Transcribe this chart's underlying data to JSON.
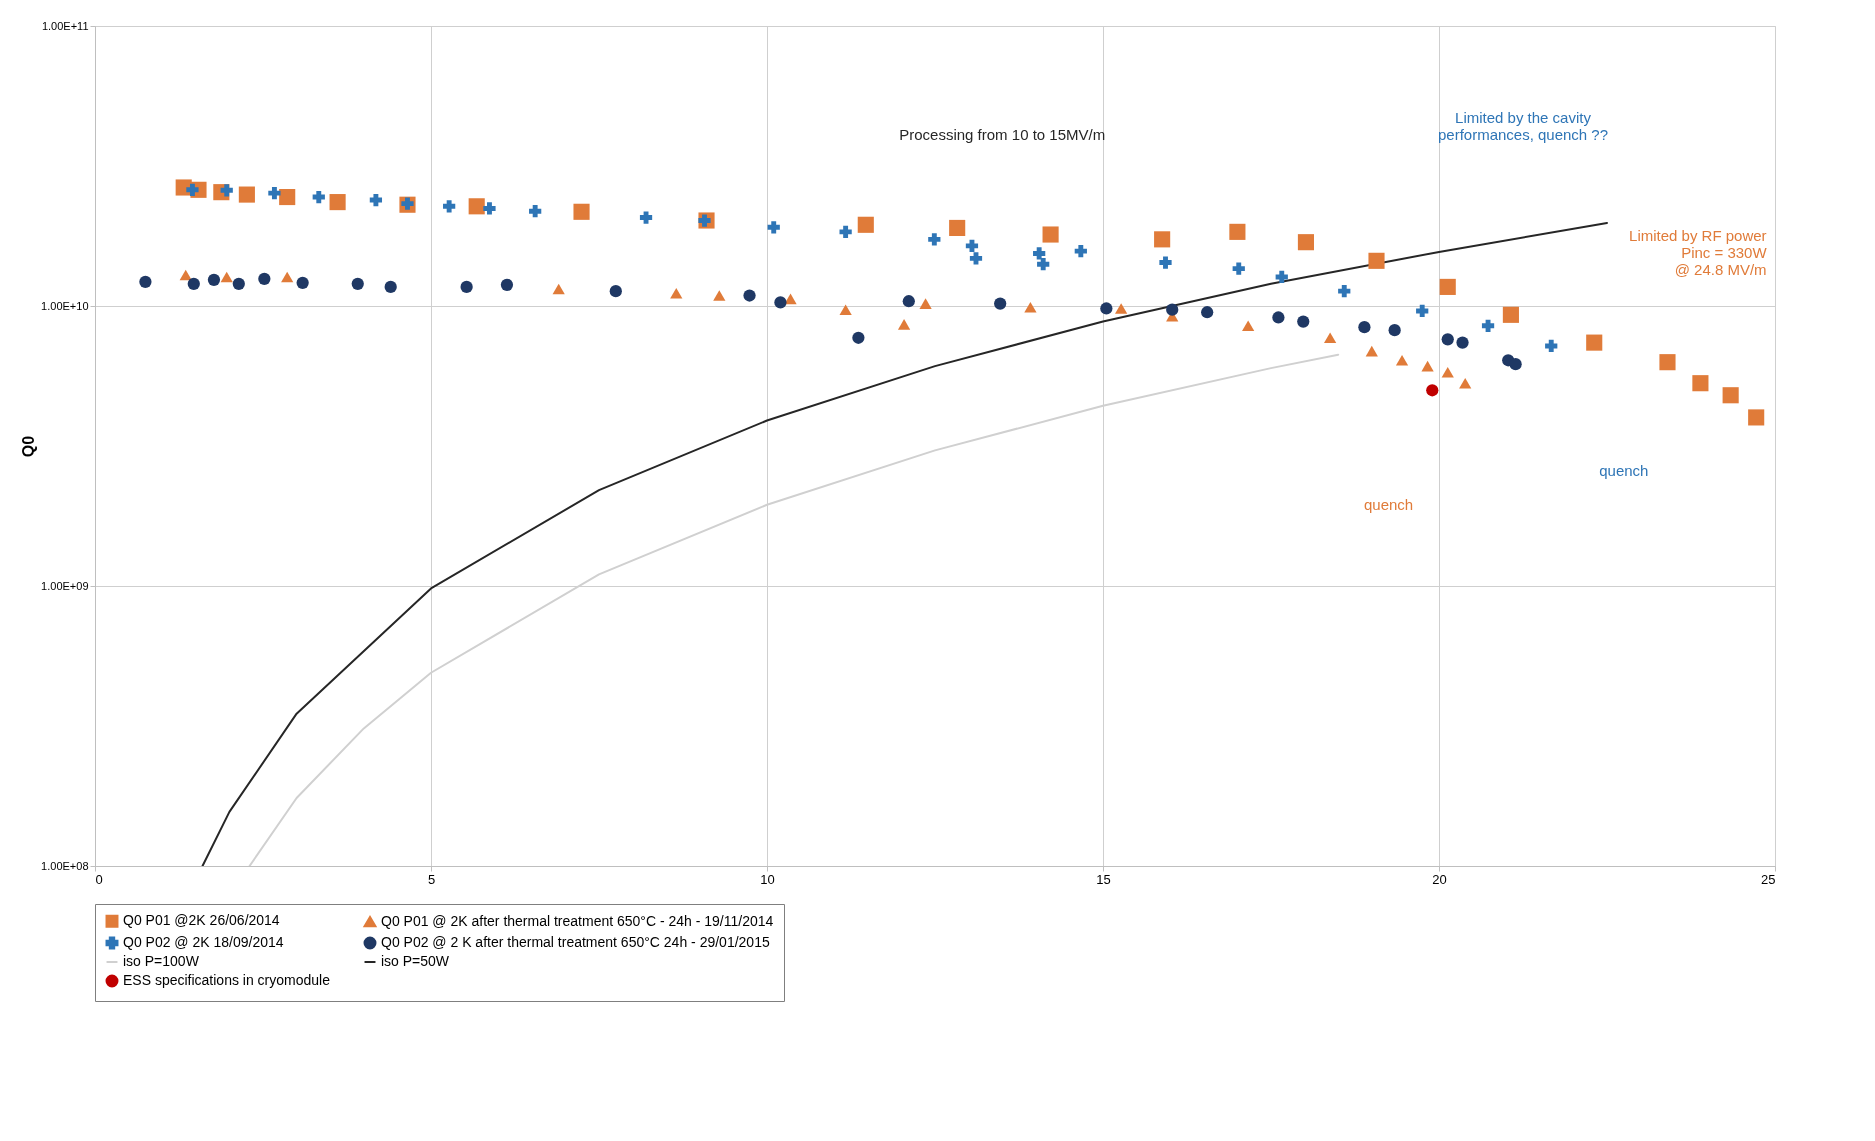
{
  "chart_data": {
    "type": "scatter",
    "ylabel": "Q0",
    "log": "y",
    "grid": true,
    "legend": "bottom",
    "xlim": [
      0,
      25
    ],
    "xticks": [
      0,
      5,
      10,
      15,
      20,
      25
    ],
    "ylim": [
      100000000,
      100000000000
    ],
    "yticks": [
      {
        "value": 100000000,
        "label": "1.00E+08"
      },
      {
        "value": 1000000000,
        "label": "1.00E+09"
      },
      {
        "value": 10000000000,
        "label": "1.00E+10"
      },
      {
        "value": 100000000000,
        "label": "1.00E+11"
      }
    ],
    "series": [
      {
        "name": "Q0 P01 @2K  26/06/2014",
        "marker": "square",
        "color": "#e07b39",
        "x": [
          1.32,
          1.54,
          1.88,
          2.26,
          2.86,
          3.61,
          4.65,
          5.68,
          7.24,
          9.1,
          11.47,
          12.83,
          14.22,
          15.88,
          17.0,
          18.02,
          19.07,
          20.13,
          21.07,
          22.31,
          23.4,
          23.89,
          24.34,
          24.72
        ],
        "values": [
          26500000000.0,
          26000000000.0,
          25500000000.0,
          25000000000.0,
          24500000000.0,
          23500000000.0,
          23000000000.0,
          22700000000.0,
          21700000000.0,
          20200000000.0,
          19500000000.0,
          19000000000.0,
          18000000000.0,
          17300000000.0,
          18400000000.0,
          16900000000.0,
          14500000000.0,
          11700000000.0,
          9300000000.0,
          7400000000.0,
          6300000000.0,
          5300000000.0,
          4800000000.0,
          4000000000.0
        ]
      },
      {
        "name": "Q0 P01 @ 2K after thermal treatment 650°C - 24h - 19/11/2014",
        "marker": "triangle",
        "color": "#e07b39",
        "x": [
          1.35,
          1.96,
          2.86,
          6.9,
          8.65,
          9.29,
          10.35,
          11.17,
          12.04,
          12.36,
          13.92,
          15.27,
          16.03,
          17.16,
          18.38,
          19.0,
          19.45,
          19.83,
          20.13,
          20.39
        ],
        "values": [
          12900000000.0,
          12700000000.0,
          12700000000.0,
          11500000000.0,
          11100000000.0,
          10900000000.0,
          10600000000.0,
          9700000000.0,
          8600000000.0,
          10200000000.0,
          9900000000.0,
          9800000000.0,
          9200000000.0,
          8500000000.0,
          7700000000.0,
          6900000000.0,
          6400000000.0,
          6100000000.0,
          5800000000.0,
          5300000000.0
        ]
      },
      {
        "name": "Q0 P02 @ 2K 18/09/2014",
        "marker": "cross",
        "color": "#2e75b6",
        "x": [
          1.45,
          1.96,
          2.67,
          3.33,
          4.18,
          4.65,
          5.27,
          5.87,
          6.55,
          8.2,
          9.07,
          10.1,
          11.17,
          12.49,
          13.05,
          13.11,
          14.05,
          14.11,
          14.67,
          15.93,
          17.02,
          17.66,
          18.59,
          19.75,
          20.73,
          21.67
        ],
        "values": [
          26000000000.0,
          25900000000.0,
          25300000000.0,
          24500000000.0,
          23900000000.0,
          23200000000.0,
          22700000000.0,
          22300000000.0,
          21800000000.0,
          20700000000.0,
          20200000000.0,
          19100000000.0,
          18400000000.0,
          17300000000.0,
          16400000000.0,
          14800000000.0,
          15400000000.0,
          14100000000.0,
          15700000000.0,
          14300000000.0,
          13600000000.0,
          12700000000.0,
          11300000000.0,
          9600000000.0,
          8500000000.0,
          7200000000.0
        ]
      },
      {
        "name": "Q0 P02 @ 2 K after thermal treatment 650°C 24h - 29/01/2015",
        "marker": "circle",
        "color": "#1f3864",
        "x": [
          0.75,
          1.47,
          1.77,
          2.14,
          2.52,
          3.09,
          3.91,
          4.4,
          5.53,
          6.13,
          7.75,
          9.74,
          10.2,
          11.36,
          12.11,
          13.47,
          15.05,
          16.03,
          16.55,
          17.61,
          17.98,
          18.89,
          19.34,
          20.13,
          20.35,
          21.03,
          21.14
        ],
        "values": [
          12200000000.0,
          12000000000.0,
          12400000000.0,
          12000000000.0,
          12500000000.0,
          12100000000.0,
          12000000000.0,
          11700000000.0,
          11700000000.0,
          11900000000.0,
          11300000000.0,
          10900000000.0,
          10300000000.0,
          7700000000.0,
          10400000000.0,
          10200000000.0,
          9800000000.0,
          9700000000.0,
          9500000000.0,
          9100000000.0,
          8800000000.0,
          8400000000.0,
          8200000000.0,
          7600000000.0,
          7400000000.0,
          6400000000.0,
          6200000000.0
        ]
      },
      {
        "name": "iso P=100W",
        "type": "line",
        "marker": "none",
        "color": "#d0d0d0",
        "x": [
          2.3,
          3,
          4,
          5,
          7.5,
          10,
          12.5,
          15,
          17.5,
          18.5
        ],
        "values": [
          100000000.0,
          175000000.0,
          310000000.0,
          490000000.0,
          1100000000.0,
          1950000000.0,
          3050000000.0,
          4400000000.0,
          6000000000.0,
          6700000000.0
        ]
      },
      {
        "name": "iso P=50W",
        "type": "line",
        "marker": "none",
        "color": "#262626",
        "x": [
          1.6,
          2,
          3,
          5,
          7.5,
          10,
          12.5,
          15,
          17.5,
          20,
          22.5
        ],
        "values": [
          100000000.0,
          156000000.0,
          350000000.0,
          980000000.0,
          2200000000.0,
          3900000000.0,
          6100000000.0,
          8800000000.0,
          12000000000.0,
          15600000000.0,
          19800000000.0
        ]
      },
      {
        "name": "ESS specifications in cryomodule",
        "marker": "circle",
        "color": "#c00000",
        "x": [
          19.9
        ],
        "values": [
          5000000000.0
        ]
      }
    ],
    "annotations": [
      "Processing from 10 to 15MV/m",
      "Limited by the cavity\nperformances, quench ??",
      "Limited by RF power\nPinc = 330W\n@ 24.8 MV/m",
      "quench",
      "quench"
    ]
  }
}
